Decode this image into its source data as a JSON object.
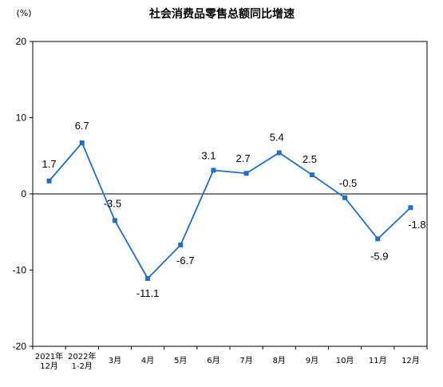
{
  "chart_data": {
    "type": "line",
    "title": "社会消费品零售总额同比增速",
    "unit_label": "(%)",
    "categories": [
      [
        "2021年",
        "12月"
      ],
      [
        "2022年",
        "1-2月"
      ],
      [
        "3月"
      ],
      [
        "4月"
      ],
      [
        "5月"
      ],
      [
        "6月"
      ],
      [
        "7月"
      ],
      [
        "8月"
      ],
      [
        "9月"
      ],
      [
        "10月"
      ],
      [
        "11月"
      ],
      [
        "12月"
      ]
    ],
    "series": [
      {
        "values": [
          1.7,
          6.7,
          -3.5,
          -11.1,
          -6.7,
          3.1,
          2.7,
          5.4,
          2.5,
          -0.5,
          -5.9,
          -1.8
        ],
        "labels": [
          "1.7",
          "6.7",
          "-3.5",
          "-11.1",
          "-6.7",
          "3.1",
          "2.7",
          "5.4",
          "2.5",
          "-0.5",
          "-5.9",
          "-1.8"
        ]
      }
    ],
    "ylim": [
      -20,
      20
    ],
    "yticks": [
      20,
      10,
      0,
      -10,
      -20
    ],
    "ytick_labels": [
      "20",
      "10",
      "0",
      "-10",
      "-20"
    ],
    "line_color": "#1F6FC5",
    "grid": false,
    "legend": "none"
  }
}
